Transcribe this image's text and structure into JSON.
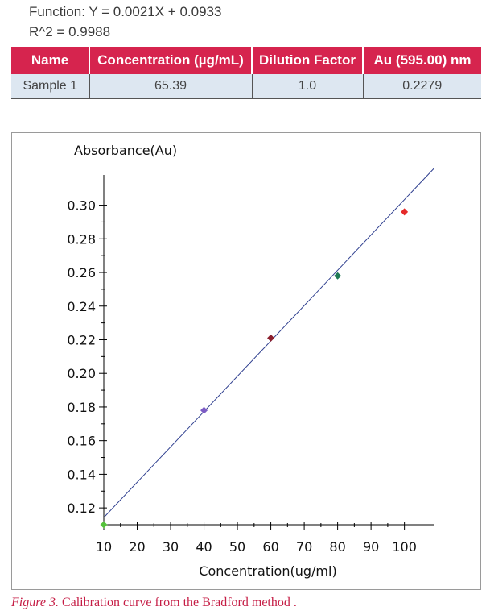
{
  "header": {
    "function_text": "Function: Y = 0.0021X + 0.0933",
    "r2_text": "R^2 = 0.9988"
  },
  "results_table": {
    "columns": [
      "Name",
      "Concentration (µg/mL)",
      "Dilution Factor",
      "Au (595.00) nm"
    ],
    "rows": [
      [
        "Sample 1",
        "65.39",
        "1.0",
        "0.2279"
      ]
    ]
  },
  "chart_data": {
    "type": "scatter",
    "ylabel": "Absorbance(Au)",
    "xlabel": "Concentration(ug/ml)",
    "xlim": [
      10,
      109
    ],
    "ylim": [
      0.11,
      0.318
    ],
    "x_ticks": [
      10,
      20,
      30,
      40,
      50,
      60,
      70,
      80,
      90,
      100
    ],
    "y_ticks": [
      "0.12",
      "0.14",
      "0.16",
      "0.18",
      "0.20",
      "0.22",
      "0.24",
      "0.26",
      "0.28",
      "0.30"
    ],
    "fit_line": {
      "slope": 0.0021,
      "intercept": 0.0933,
      "x_range": [
        10,
        109
      ],
      "color": "#2f3f8f"
    },
    "points": [
      {
        "x": 10,
        "y": 0.11,
        "color": "#55c13b"
      },
      {
        "x": 40,
        "y": 0.178,
        "color": "#7c5cc4"
      },
      {
        "x": 60,
        "y": 0.221,
        "color": "#8b1f2d"
      },
      {
        "x": 80,
        "y": 0.258,
        "color": "#1f7a55"
      },
      {
        "x": 100,
        "y": 0.296,
        "color": "#e52a2a"
      }
    ],
    "grid": false,
    "legend": "none"
  },
  "caption": {
    "figure_label": "Figure 3.",
    "text": " Calibration curve from the Bradford method ."
  }
}
